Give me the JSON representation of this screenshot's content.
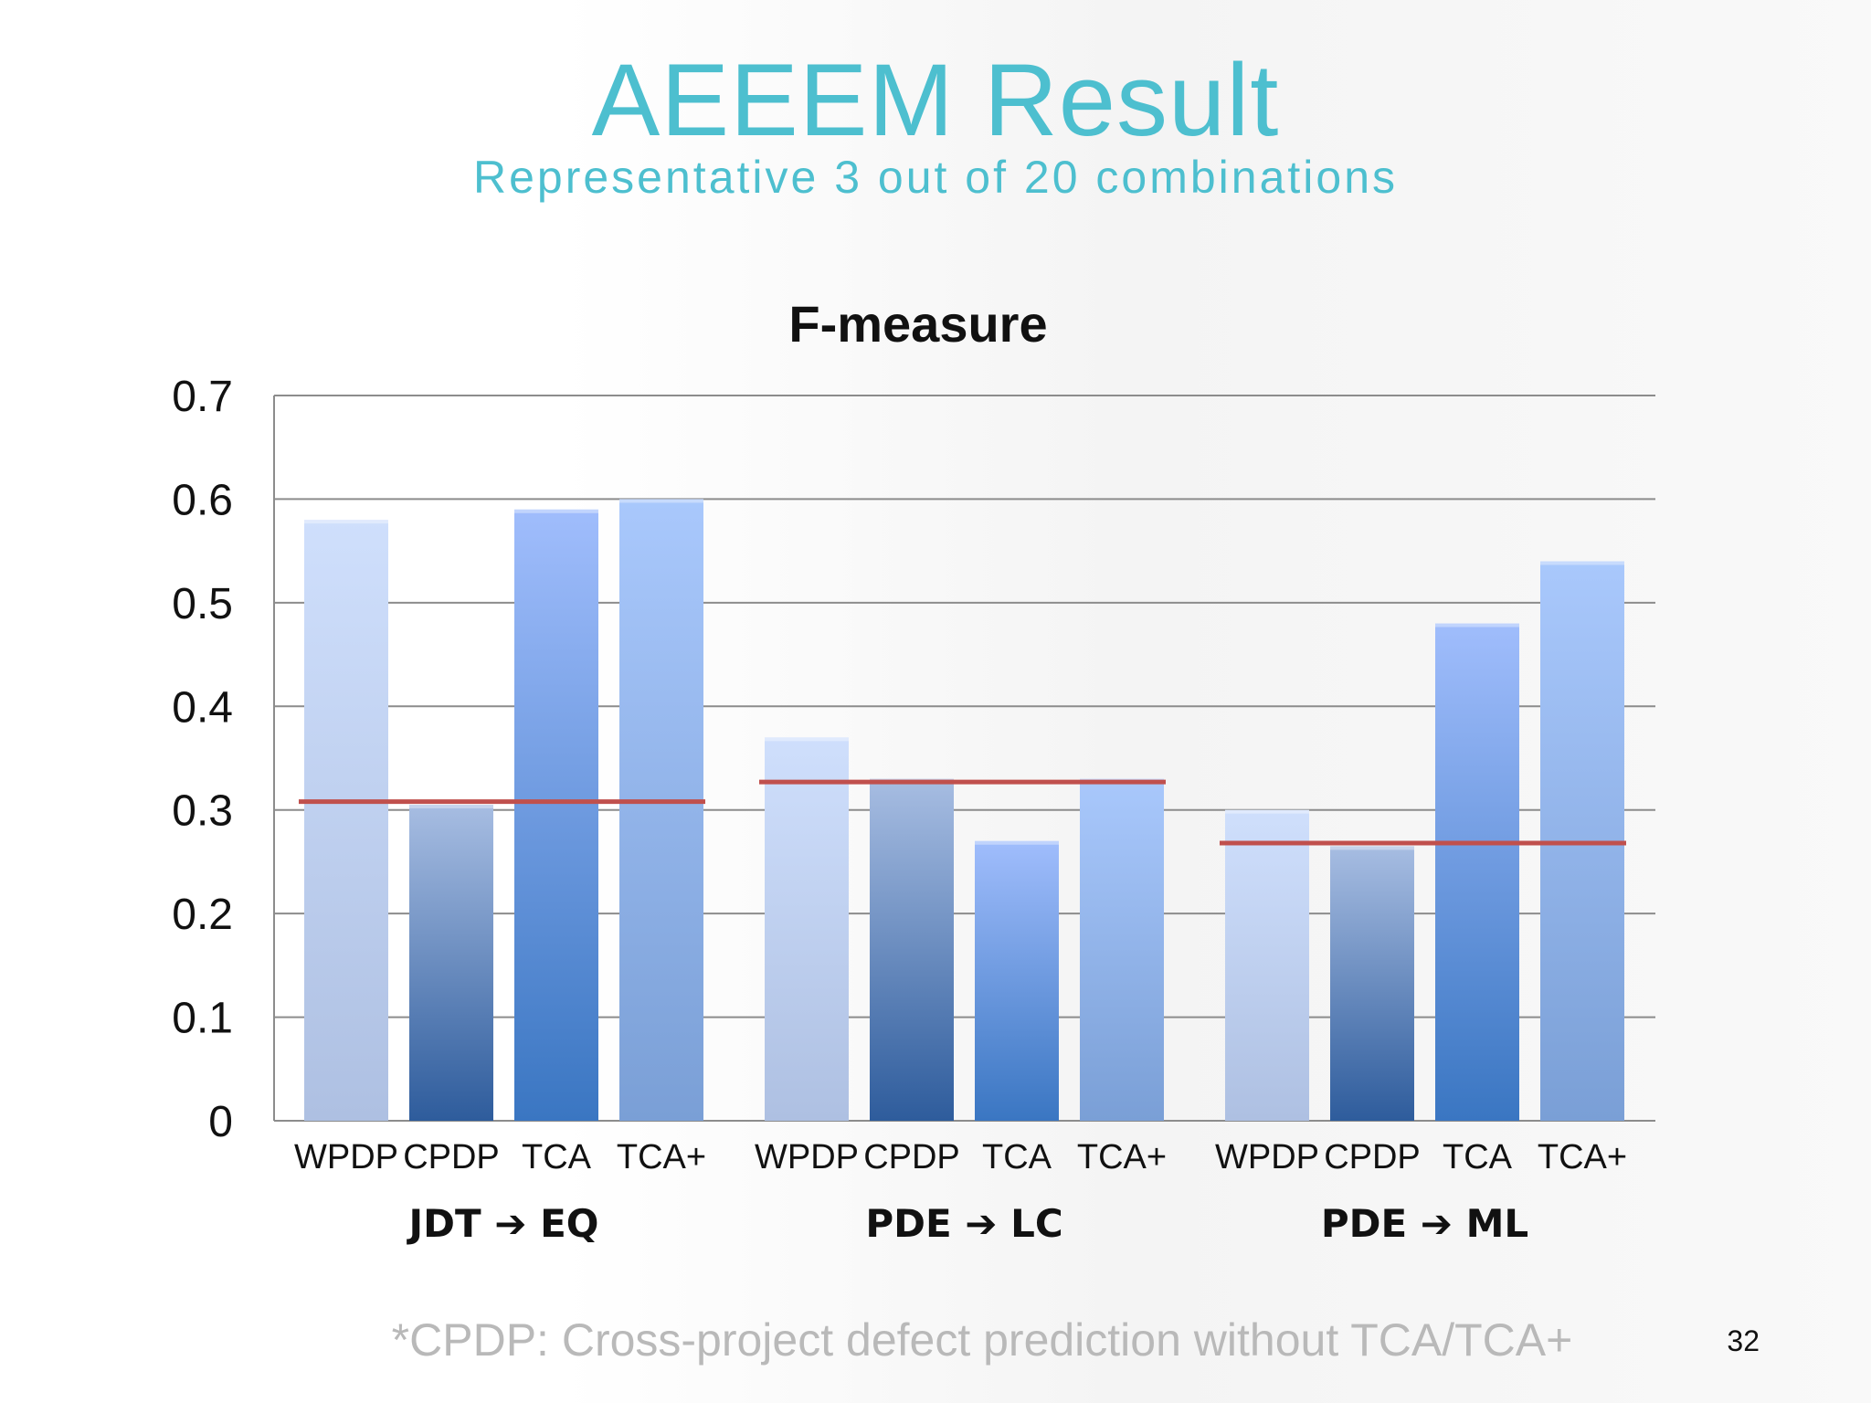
{
  "slide": {
    "title": "AEEEM Result",
    "subtitle": "Representative 3 out of 20 combinations",
    "footnote": "*CPDP: Cross-project defect prediction without TCA/TCA+",
    "page_number": "32"
  },
  "colors": {
    "title": "#4dbfcf",
    "baseline_line": "#c0504d",
    "gridline": "#8c8c8c"
  },
  "chart_data": {
    "type": "bar",
    "title": "F-measure",
    "xlabel": "",
    "ylabel": "",
    "ylim": [
      0,
      0.7
    ],
    "yticks": [
      "0",
      "0.1",
      "0.2",
      "0.3",
      "0.4",
      "0.5",
      "0.6",
      "0.7"
    ],
    "grid": true,
    "legend": "none",
    "groups": [
      {
        "label": "JDT ➔ EQ",
        "categories": [
          "WPDP",
          "CPDP",
          "TCA",
          "TCA+"
        ],
        "values": [
          0.58,
          0.305,
          0.59,
          0.6
        ],
        "reference_line": 0.308
      },
      {
        "label": "PDE ➔ LC",
        "categories": [
          "WPDP",
          "CPDP",
          "TCA",
          "TCA+"
        ],
        "values": [
          0.37,
          0.33,
          0.27,
          0.33
        ],
        "reference_line": 0.327
      },
      {
        "label": "PDE ➔ ML",
        "categories": [
          "WPDP",
          "CPDP",
          "TCA",
          "TCA+"
        ],
        "values": [
          0.3,
          0.265,
          0.48,
          0.54
        ],
        "reference_line": 0.268
      }
    ],
    "bar_styles": {
      "WPDP": [
        "#cfdffc",
        "#aec0e2"
      ],
      "CPDP": [
        "#a7bde2",
        "#2e5c9c"
      ],
      "TCA": [
        "#a0bdfc",
        "#3a76c2"
      ],
      "TCA+": [
        "#a9c8fc",
        "#7a9fd6"
      ]
    }
  }
}
